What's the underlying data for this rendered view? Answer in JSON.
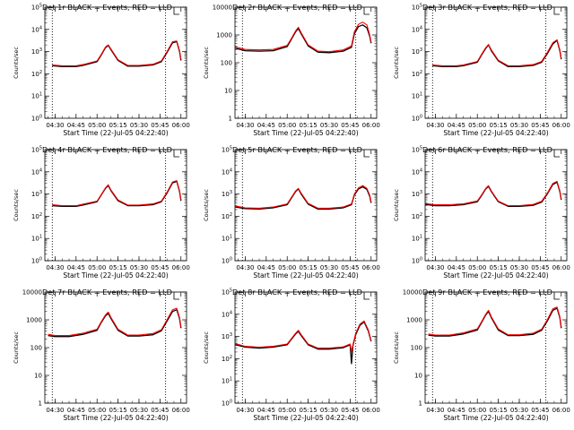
{
  "chart_data": {
    "type": "line",
    "y_scale": "log",
    "x_unit": "UT time (22-Jul-05)",
    "x_ticks": [
      "04:30",
      "04:45",
      "05:00",
      "05:15",
      "05:30",
      "05:45",
      "06:00"
    ],
    "xlabel": "Start Time (22-Jul-05 04:22:40)",
    "ylabel": "Counts/sec",
    "legend_text": "BLACK = Events, RED = LLD",
    "series_colors": {
      "events": "#000000",
      "lld": "#ff0000"
    },
    "panels": [
      {
        "title": "Det 1r BLACK = Events, RED = LLD",
        "ylim": [
          1,
          100000
        ],
        "y_tick_style": "sci",
        "x": [
          "04:28",
          "04:35",
          "04:45",
          "04:50",
          "05:00",
          "05:03",
          "05:06",
          "05:08",
          "05:10",
          "05:15",
          "05:22",
          "05:30",
          "05:40",
          "05:46",
          "05:50",
          "05:54",
          "05:57",
          "05:59",
          "06:00"
        ],
        "events": [
          230,
          210,
          210,
          240,
          350,
          700,
          1500,
          1900,
          1200,
          400,
          220,
          220,
          250,
          350,
          900,
          2500,
          2800,
          1000,
          400
        ],
        "lld": [
          250,
          230,
          230,
          260,
          380,
          750,
          1600,
          2000,
          1300,
          430,
          240,
          240,
          270,
          380,
          1000,
          2800,
          3000,
          1100,
          450
        ]
      },
      {
        "title": "Det 2r BLACK = Events, RED = LLD",
        "ylim": [
          1,
          10000
        ],
        "y_tick_style": "plain",
        "x": [
          "04:23",
          "04:30",
          "04:40",
          "04:50",
          "05:00",
          "05:03",
          "05:06",
          "05:08",
          "05:10",
          "05:15",
          "05:22",
          "05:30",
          "05:40",
          "05:46",
          "05:48",
          "05:51",
          "05:54",
          "05:57",
          "05:59",
          "06:00"
        ],
        "events": [
          330,
          270,
          260,
          270,
          380,
          700,
          1300,
          1700,
          1100,
          400,
          240,
          230,
          260,
          360,
          1100,
          2000,
          2300,
          1800,
          900,
          500
        ],
        "lld": [
          370,
          300,
          290,
          300,
          420,
          750,
          1400,
          1900,
          1200,
          440,
          260,
          250,
          290,
          400,
          1300,
          2400,
          2900,
          2300,
          1000,
          550
        ]
      },
      {
        "title": "Det 3r BLACK = Events, RED = LLD",
        "ylim": [
          1,
          100000
        ],
        "y_tick_style": "sci",
        "x": [
          "04:28",
          "04:35",
          "04:45",
          "04:50",
          "05:00",
          "05:03",
          "05:06",
          "05:08",
          "05:10",
          "05:15",
          "05:22",
          "05:30",
          "05:40",
          "05:46",
          "05:50",
          "05:54",
          "05:57",
          "05:59",
          "06:00"
        ],
        "events": [
          230,
          210,
          210,
          230,
          330,
          700,
          1400,
          2000,
          1100,
          380,
          210,
          210,
          240,
          330,
          800,
          2200,
          3200,
          1100,
          450
        ],
        "lld": [
          250,
          230,
          230,
          250,
          360,
          750,
          1500,
          2100,
          1200,
          410,
          230,
          230,
          260,
          360,
          900,
          2500,
          3400,
          1200,
          500
        ]
      },
      {
        "title": "Det 4r BLACK = Events, RED = LLD",
        "ylim": [
          1,
          100000
        ],
        "y_tick_style": "sci",
        "x": [
          "04:28",
          "04:35",
          "04:45",
          "04:50",
          "05:00",
          "05:03",
          "05:06",
          "05:08",
          "05:10",
          "05:15",
          "05:22",
          "05:30",
          "05:40",
          "05:46",
          "05:50",
          "05:54",
          "05:57",
          "05:59",
          "06:00"
        ],
        "events": [
          300,
          280,
          280,
          320,
          450,
          900,
          1800,
          2400,
          1400,
          500,
          300,
          300,
          330,
          450,
          1100,
          3200,
          3700,
          1300,
          500
        ],
        "lld": [
          330,
          300,
          300,
          350,
          480,
          950,
          1900,
          2600,
          1500,
          540,
          320,
          320,
          360,
          480,
          1200,
          3500,
          4000,
          1400,
          550
        ]
      },
      {
        "title": "Det 5r BLACK = Events, RED = LLD",
        "ylim": [
          1,
          100000
        ],
        "y_tick_style": "sci",
        "x": [
          "04:23",
          "04:30",
          "04:40",
          "04:50",
          "05:00",
          "05:03",
          "05:06",
          "05:08",
          "05:10",
          "05:15",
          "05:22",
          "05:30",
          "05:40",
          "05:46",
          "05:48",
          "05:51",
          "05:54",
          "05:57",
          "05:59",
          "06:00"
        ],
        "events": [
          260,
          220,
          210,
          240,
          330,
          650,
          1300,
          1700,
          1000,
          350,
          210,
          210,
          240,
          330,
          900,
          1700,
          2100,
          1600,
          800,
          400
        ],
        "lld": [
          290,
          240,
          230,
          260,
          360,
          700,
          1400,
          1800,
          1100,
          380,
          230,
          230,
          260,
          360,
          1000,
          1900,
          2400,
          1800,
          900,
          450
        ]
      },
      {
        "title": "Det 6r BLACK = Events, RED = LLD",
        "ylim": [
          1,
          100000
        ],
        "y_tick_style": "sci",
        "x": [
          "04:23",
          "04:30",
          "04:40",
          "04:50",
          "05:00",
          "05:03",
          "05:06",
          "05:08",
          "05:10",
          "05:15",
          "05:22",
          "05:30",
          "05:40",
          "05:46",
          "05:50",
          "05:54",
          "05:57",
          "05:59",
          "06:00"
        ],
        "events": [
          340,
          300,
          300,
          330,
          450,
          850,
          1700,
          2200,
          1300,
          450,
          280,
          280,
          310,
          430,
          1000,
          2700,
          3400,
          1300,
          550
        ],
        "lld": [
          370,
          330,
          330,
          360,
          490,
          900,
          1800,
          2400,
          1400,
          480,
          300,
          300,
          340,
          470,
          1100,
          3000,
          3700,
          1400,
          600
        ]
      },
      {
        "title": "Det 7r BLACK = Events, RED = LLD",
        "ylim": [
          1,
          10000
        ],
        "y_tick_style": "plain",
        "x": [
          "04:25",
          "04:30",
          "04:40",
          "04:50",
          "05:00",
          "05:03",
          "05:06",
          "05:08",
          "05:10",
          "05:15",
          "05:22",
          "05:30",
          "05:40",
          "05:46",
          "05:50",
          "05:54",
          "05:57",
          "05:59",
          "06:00"
        ],
        "events": [
          270,
          250,
          250,
          300,
          420,
          800,
          1400,
          1700,
          1100,
          420,
          260,
          260,
          290,
          400,
          900,
          2000,
          2300,
          1100,
          500
        ],
        "lld": [
          300,
          270,
          270,
          330,
          460,
          850,
          1500,
          1900,
          1200,
          460,
          280,
          280,
          320,
          440,
          1000,
          2300,
          2600,
          1200,
          550
        ]
      },
      {
        "title": "Det 8r BLACK = Events, RED = LLD",
        "ylim": [
          1,
          100000
        ],
        "y_tick_style": "sci",
        "x": [
          "04:23",
          "04:30",
          "04:40",
          "04:50",
          "05:00",
          "05:03",
          "05:06",
          "05:08",
          "05:10",
          "05:15",
          "05:22",
          "05:30",
          "05:40",
          "05:45",
          "05:46",
          "05:47",
          "05:49",
          "05:52",
          "05:55",
          "05:58",
          "06:00"
        ],
        "events": [
          430,
          330,
          300,
          330,
          420,
          750,
          1300,
          1700,
          1100,
          420,
          270,
          270,
          310,
          420,
          60,
          380,
          1200,
          3200,
          4500,
          1800,
          600
        ],
        "lld": [
          480,
          360,
          330,
          360,
          460,
          800,
          1400,
          1900,
          1200,
          460,
          300,
          300,
          340,
          460,
          200,
          420,
          1400,
          3600,
          5000,
          2000,
          650
        ]
      },
      {
        "title": "Det 9r BLACK = Events, RED = LLD",
        "ylim": [
          1,
          10000
        ],
        "y_tick_style": "plain",
        "x": [
          "04:25",
          "04:30",
          "04:40",
          "04:50",
          "05:00",
          "05:03",
          "05:06",
          "05:08",
          "05:10",
          "05:15",
          "05:22",
          "05:30",
          "05:40",
          "05:46",
          "05:50",
          "05:54",
          "05:57",
          "05:59",
          "06:00"
        ],
        "events": [
          280,
          260,
          260,
          310,
          430,
          800,
          1500,
          2000,
          1200,
          430,
          270,
          270,
          300,
          420,
          900,
          2200,
          2600,
          1200,
          500
        ],
        "lld": [
          310,
          280,
          280,
          340,
          470,
          850,
          1600,
          2200,
          1300,
          470,
          290,
          290,
          330,
          460,
          1000,
          2500,
          2900,
          1300,
          550
        ]
      }
    ]
  }
}
